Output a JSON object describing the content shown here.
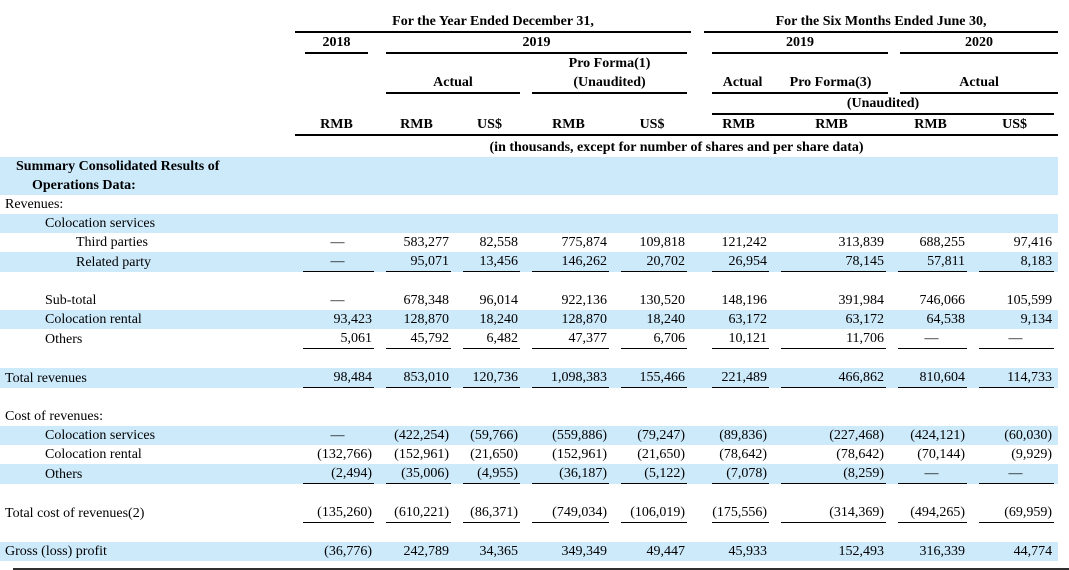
{
  "document": {
    "note_line": "(in thousands, except for number of shares and per share data)",
    "header": {
      "year_group": {
        "title": "For the Year Ended December 31,"
      },
      "six_month_group": {
        "title": "For the Six Months Ended June 30,"
      },
      "years": {
        "fy2018": "2018",
        "fy2019": "2019",
        "sm2019": "2019",
        "sm2020": "2020"
      },
      "labels": {
        "actual": "Actual",
        "pro_forma1": "Pro Forma(1)",
        "pro_forma3": "Pro Forma(3)",
        "unaudited": "(Unaudited)",
        "rmb": "RMB",
        "usd": "US$"
      }
    },
    "colors": {
      "highlight": "#cdeafb",
      "rule": "#000000"
    },
    "rows": [
      {
        "label": "Summary Consolidated Results of",
        "indent": 1,
        "bold": true,
        "highlight": true,
        "values": [
          "",
          "",
          "",
          "",
          "",
          "",
          "",
          "",
          ""
        ]
      },
      {
        "label": "Operations Data:",
        "indent": 2,
        "bold": true,
        "highlight": true,
        "values": [
          "",
          "",
          "",
          "",
          "",
          "",
          "",
          "",
          ""
        ]
      },
      {
        "label": "Revenues:",
        "indent": 0,
        "values": [
          "",
          "",
          "",
          "",
          "",
          "",
          "",
          "",
          ""
        ]
      },
      {
        "label": "Colocation services",
        "indent": 3,
        "highlight": true,
        "values": [
          "",
          "",
          "",
          "",
          "",
          "",
          "",
          "",
          ""
        ]
      },
      {
        "label": "Third parties",
        "indent": 4,
        "values": [
          "—",
          "583,277",
          "82,558",
          "775,874",
          "109,818",
          "121,242",
          "313,839",
          "688,255",
          "97,416"
        ]
      },
      {
        "label": "Related party",
        "indent": 4,
        "highlight": true,
        "underline": true,
        "values": [
          "—",
          "95,071",
          "13,456",
          "146,262",
          "20,702",
          "26,954",
          "78,145",
          "57,811",
          "8,183"
        ]
      },
      {
        "label": "",
        "indent": 0,
        "values": [
          "",
          "",
          "",
          "",
          "",
          "",
          "",
          "",
          ""
        ]
      },
      {
        "label": "Sub-total",
        "indent": 3,
        "values": [
          "—",
          "678,348",
          "96,014",
          "922,136",
          "130,520",
          "148,196",
          "391,984",
          "746,066",
          "105,599"
        ]
      },
      {
        "label": "Colocation rental",
        "indent": 3,
        "highlight": true,
        "values": [
          "93,423",
          "128,870",
          "18,240",
          "128,870",
          "18,240",
          "63,172",
          "63,172",
          "64,538",
          "9,134"
        ]
      },
      {
        "label": "Others",
        "indent": 3,
        "underline": true,
        "values": [
          "5,061",
          "45,792",
          "6,482",
          "47,377",
          "6,706",
          "10,121",
          "11,706",
          "—",
          "—"
        ]
      },
      {
        "label": "",
        "indent": 0,
        "values": [
          "",
          "",
          "",
          "",
          "",
          "",
          "",
          "",
          ""
        ]
      },
      {
        "label": "Total revenues",
        "indent": 0,
        "highlight": true,
        "underline": true,
        "values": [
          "98,484",
          "853,010",
          "120,736",
          "1,098,383",
          "155,466",
          "221,489",
          "466,862",
          "810,604",
          "114,733"
        ]
      },
      {
        "label": "",
        "indent": 0,
        "values": [
          "",
          "",
          "",
          "",
          "",
          "",
          "",
          "",
          ""
        ]
      },
      {
        "label": "Cost of revenues:",
        "indent": 0,
        "values": [
          "",
          "",
          "",
          "",
          "",
          "",
          "",
          "",
          ""
        ]
      },
      {
        "label": "Colocation services",
        "indent": 3,
        "highlight": true,
        "values": [
          "—",
          "(422,254)",
          "(59,766)",
          "(559,886)",
          "(79,247)",
          "(89,836)",
          "(227,468)",
          "(424,121)",
          "(60,030)"
        ]
      },
      {
        "label": "Colocation rental",
        "indent": 3,
        "values": [
          "(132,766)",
          "(152,961)",
          "(21,650)",
          "(152,961)",
          "(21,650)",
          "(78,642)",
          "(78,642)",
          "(70,144)",
          "(9,929)"
        ]
      },
      {
        "label": "Others",
        "indent": 3,
        "highlight": true,
        "underline": true,
        "values": [
          "(2,494)",
          "(35,006)",
          "(4,955)",
          "(36,187)",
          "(5,122)",
          "(7,078)",
          "(8,259)",
          "—",
          "—"
        ]
      },
      {
        "label": "",
        "indent": 0,
        "values": [
          "",
          "",
          "",
          "",
          "",
          "",
          "",
          "",
          ""
        ]
      },
      {
        "label": "Total cost of revenues(2)",
        "indent": 0,
        "underline": true,
        "values": [
          "(135,260)",
          "(610,221)",
          "(86,371)",
          "(749,034)",
          "(106,019)",
          "(175,556)",
          "(314,369)",
          "(494,265)",
          "(69,959)"
        ]
      },
      {
        "label": "",
        "indent": 0,
        "values": [
          "",
          "",
          "",
          "",
          "",
          "",
          "",
          "",
          ""
        ]
      },
      {
        "label": "Gross (loss) profit",
        "indent": 0,
        "highlight": true,
        "values": [
          "(36,776)",
          "242,789",
          "34,365",
          "349,349",
          "49,447",
          "45,933",
          "152,493",
          "316,339",
          "44,774"
        ]
      }
    ]
  }
}
